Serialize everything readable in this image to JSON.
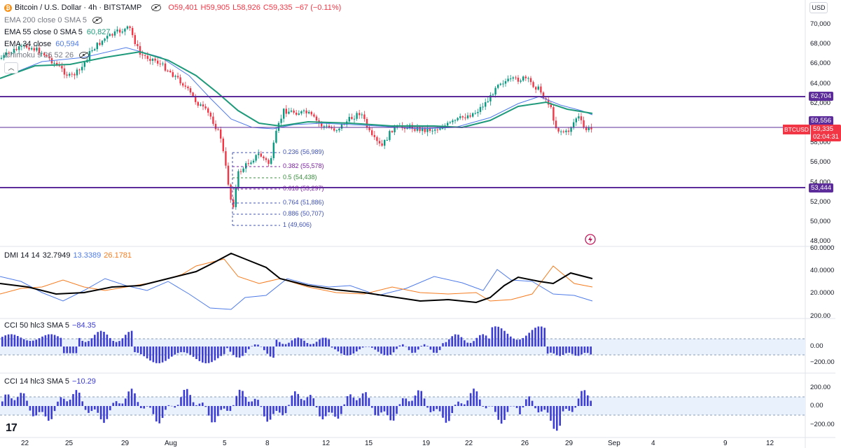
{
  "header": {
    "symbol_icon": "bitcoin-icon",
    "title": "Bitcoin / U.S. Dollar · 4h · BITSTAMP",
    "ohlc": {
      "open": "O59,401",
      "high": "H59,905",
      "low": "L58,926",
      "close": "C59,335",
      "change": "−67 (−0.11%)"
    },
    "currency_button": "USD"
  },
  "indicators": {
    "ema200": {
      "label": "EMA 200 close 0 SMA 5"
    },
    "ema55": {
      "label": "EMA 55 close 0 SMA 5",
      "value": "60,827"
    },
    "ema34": {
      "label": "EMA 34 close",
      "value": "60,594"
    },
    "ichimoku": {
      "label": "Ichimoku 9 26 52 26"
    }
  },
  "price_axis": {
    "ticks": [
      "70,000",
      "68,000",
      "66,000",
      "64,000",
      "62,000",
      "60,000",
      "58,000",
      "56,000",
      "54,000",
      "52,000",
      "50,000",
      "48,000"
    ],
    "labels": {
      "resistance": "62,704",
      "ema_label": "59,556",
      "symbol": "BTCUSD",
      "price": "59,335",
      "countdown": "02:04:31",
      "support": "53,444"
    }
  },
  "fib": [
    {
      "label": "0.236 (56,989)"
    },
    {
      "label": "0.382 (55,578)"
    },
    {
      "label": "0.5 (54,438)"
    },
    {
      "label": "0.618 (53,297)"
    },
    {
      "label": "0.764 (51,886)"
    },
    {
      "label": "0.886 (50,707)"
    },
    {
      "label": "1 (49,606)"
    }
  ],
  "dmi": {
    "label": "DMI 14 14",
    "adx": "32.7949",
    "plus_di": "13.3389",
    "minus_di": "26.1781",
    "ticks": [
      "60.0000",
      "40.0000",
      "20.0000"
    ]
  },
  "cci50": {
    "label": "CCI 50 hlc3 SMA 5",
    "value": "−84.35",
    "ticks": [
      "200.00",
      "0.00",
      "−200.00"
    ]
  },
  "cci14": {
    "label": "CCI 14 hlc3 SMA 5",
    "value": "−10.29",
    "ticks": [
      "200.00",
      "0.00",
      "−200.00"
    ]
  },
  "time_axis": {
    "labels": [
      "22",
      "25",
      "29",
      "Aug",
      "5",
      "8",
      "12",
      "15",
      "19",
      "22",
      "26",
      "29",
      "Sep",
      "4",
      "9",
      "12"
    ]
  },
  "colors": {
    "up": "#089981",
    "down": "#f23645",
    "level": "#5b2c9a",
    "ema_green": "#1f9a7a",
    "ema_blue": "#4f7be8",
    "cci_bar": "#3b3bd6",
    "adx": "#000000",
    "minus_di": "#f57c1f",
    "plus_di": "#4f7be8"
  },
  "icons": {
    "hide_eye": "eye-hidden-icon",
    "collapse": "chevron-up-icon",
    "lightning": "lightning-icon",
    "logo": "tradingview-logo"
  }
}
